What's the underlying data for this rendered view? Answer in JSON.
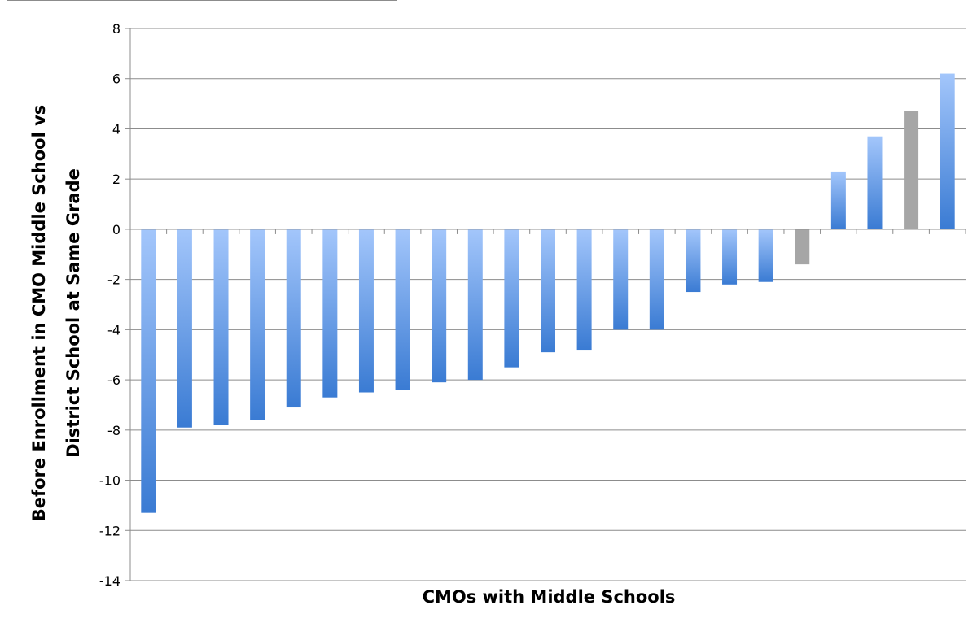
{
  "chart_data": {
    "type": "bar",
    "title": "",
    "xlabel": "CMOs with Middle Schools",
    "ylabel_lines": [
      "Before Enrollment in CMO Middle School vs",
      "District School at Same Grade"
    ],
    "ylim": [
      -14,
      8
    ],
    "yticks": [
      8,
      6,
      4,
      2,
      0,
      -2,
      -4,
      -6,
      -8,
      -10,
      -12,
      -14
    ],
    "grid": true,
    "legend": "none",
    "colors": {
      "primary_light": "#a3c6fb",
      "primary_dark": "#3a7bd3",
      "gray": "#a6a6a6",
      "grid": "#8c8c8c"
    },
    "bars": [
      {
        "value": -11.3,
        "style": "blue"
      },
      {
        "value": -7.9,
        "style": "blue"
      },
      {
        "value": -7.8,
        "style": "blue"
      },
      {
        "value": -7.6,
        "style": "blue"
      },
      {
        "value": -7.1,
        "style": "blue"
      },
      {
        "value": -6.7,
        "style": "blue"
      },
      {
        "value": -6.5,
        "style": "blue"
      },
      {
        "value": -6.4,
        "style": "blue"
      },
      {
        "value": -6.1,
        "style": "blue"
      },
      {
        "value": -6.0,
        "style": "blue"
      },
      {
        "value": -5.5,
        "style": "blue"
      },
      {
        "value": -4.9,
        "style": "blue"
      },
      {
        "value": -4.8,
        "style": "blue"
      },
      {
        "value": -4.0,
        "style": "blue"
      },
      {
        "value": -4.0,
        "style": "blue"
      },
      {
        "value": -2.5,
        "style": "blue"
      },
      {
        "value": -2.2,
        "style": "blue"
      },
      {
        "value": -2.1,
        "style": "blue"
      },
      {
        "value": -1.4,
        "style": "gray"
      },
      {
        "value": 2.3,
        "style": "blue"
      },
      {
        "value": 3.7,
        "style": "blue"
      },
      {
        "value": 4.7,
        "style": "gray"
      },
      {
        "value": 6.2,
        "style": "blue"
      }
    ]
  }
}
